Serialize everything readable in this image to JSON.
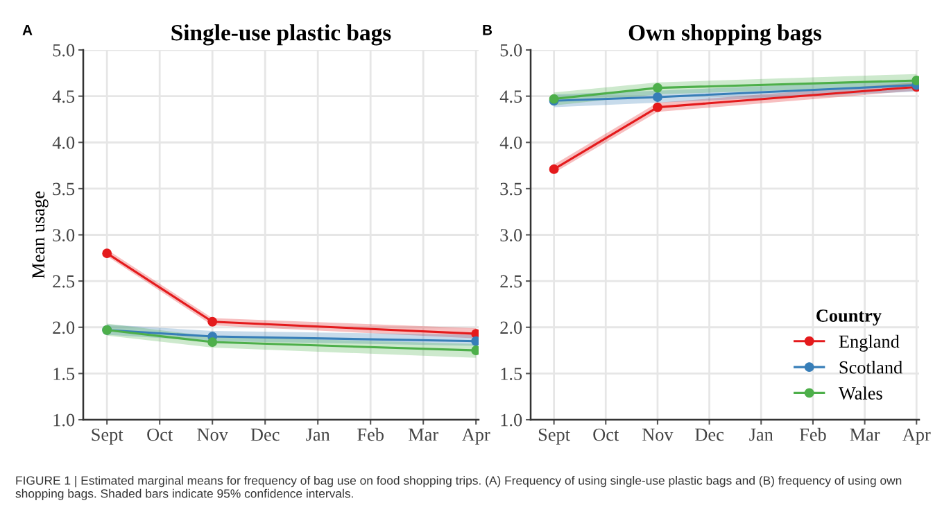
{
  "chart_data": [
    {
      "type": "line",
      "title": "Single-use plastic bags",
      "ylabel": "Mean usage",
      "annotations": [
        "A",
        "FIGURE 1 | Estimated marginal means for frequency of bag use on food shopping trips. (A) Frequency of using single-use plastic bags and (B) frequency of using own shopping bags. Shaded bars indicate 95% confidence intervals."
      ],
      "categories": [
        "Sept",
        "Oct",
        "Nov",
        "Dec",
        "Jan",
        "Feb",
        "Mar",
        "Apr"
      ],
      "series": [
        {
          "color": "#e41a1c",
          "values": [
            2.8,
            null,
            2.06,
            null,
            null,
            null,
            null,
            1.93
          ],
          "lower": [
            2.77,
            null,
            2.02,
            null,
            null,
            null,
            null,
            1.88
          ],
          "upper": [
            2.84,
            null,
            2.1,
            null,
            null,
            null,
            null,
            1.99
          ]
        },
        {
          "color": "#377eb8",
          "values": [
            1.97,
            null,
            1.9,
            null,
            null,
            null,
            null,
            1.85
          ],
          "lower": [
            1.92,
            null,
            1.85,
            null,
            null,
            null,
            null,
            1.8
          ],
          "upper": [
            2.03,
            null,
            1.96,
            null,
            null,
            null,
            null,
            1.92
          ]
        },
        {
          "color": "#4daf4a",
          "values": [
            1.97,
            null,
            1.84,
            null,
            null,
            null,
            null,
            1.75
          ],
          "lower": [
            1.91,
            null,
            1.78,
            null,
            null,
            null,
            null,
            1.67
          ],
          "upper": [
            2.04,
            null,
            1.9,
            null,
            null,
            null,
            null,
            1.82
          ]
        }
      ],
      "ylim": [
        1.0,
        5.0
      ],
      "yticks": [
        {
          "value": 1.0,
          "label": "1.0"
        },
        {
          "value": 1.5,
          "label": "1.5"
        },
        {
          "value": 2.0,
          "label": "2.0"
        },
        {
          "value": 2.5,
          "label": "2.5"
        },
        {
          "value": 3.0,
          "label": "3.0"
        },
        {
          "value": 3.5,
          "label": "3.5"
        },
        {
          "value": 4.0,
          "label": "4.0"
        },
        {
          "value": 4.5,
          "label": "4.5"
        },
        {
          "value": 5.0,
          "label": "5.0"
        }
      ],
      "grid": true,
      "marker": "circle",
      "line_style": "solid"
    },
    {
      "type": "line",
      "title": "Own shopping bags",
      "legend_title": "Country",
      "annotations": [
        "B"
      ],
      "categories": [
        "Sept",
        "Oct",
        "Nov",
        "Dec",
        "Jan",
        "Feb",
        "Mar",
        "Apr"
      ],
      "series": [
        {
          "name": "England",
          "color": "#e41a1c",
          "values": [
            3.71,
            null,
            4.38,
            null,
            null,
            null,
            null,
            4.6
          ],
          "lower": [
            3.67,
            null,
            4.33,
            null,
            null,
            null,
            null,
            4.56
          ],
          "upper": [
            3.76,
            null,
            4.43,
            null,
            null,
            null,
            null,
            4.65
          ]
        },
        {
          "name": "Scotland",
          "color": "#377eb8",
          "values": [
            4.45,
            null,
            4.49,
            null,
            null,
            null,
            null,
            4.62
          ],
          "lower": [
            4.38,
            null,
            4.43,
            null,
            null,
            null,
            null,
            4.55
          ],
          "upper": [
            4.52,
            null,
            4.56,
            null,
            null,
            null,
            null,
            4.68
          ]
        },
        {
          "name": "Wales",
          "color": "#4daf4a",
          "values": [
            4.47,
            null,
            4.59,
            null,
            null,
            null,
            null,
            4.67
          ],
          "lower": [
            4.4,
            null,
            4.52,
            null,
            null,
            null,
            null,
            4.61
          ],
          "upper": [
            4.54,
            null,
            4.65,
            null,
            null,
            null,
            null,
            4.74
          ]
        }
      ],
      "ylim": [
        1.0,
        5.0
      ],
      "yticks": [
        {
          "value": 1.0,
          "label": "1.0"
        },
        {
          "value": 1.5,
          "label": "1.5"
        },
        {
          "value": 2.0,
          "label": "2.0"
        },
        {
          "value": 2.5,
          "label": "2.5"
        },
        {
          "value": 3.0,
          "label": "3.0"
        },
        {
          "value": 3.5,
          "label": "3.5"
        },
        {
          "value": 4.0,
          "label": "4.0"
        },
        {
          "value": 4.5,
          "label": "4.5"
        },
        {
          "value": 5.0,
          "label": "5.0"
        }
      ],
      "grid": true,
      "legend": "bottom right",
      "marker": "circle",
      "line_style": "solid"
    }
  ]
}
